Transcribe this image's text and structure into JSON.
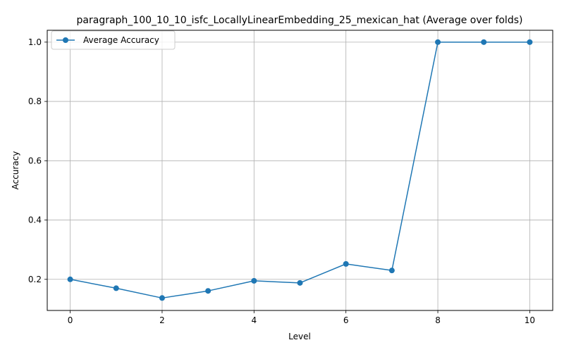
{
  "chart_data": {
    "type": "line",
    "title": "paragraph_100_10_10_isfc_LocallyLinearEmbedding_25_mexican_hat (Average over folds)",
    "xlabel": "Level",
    "ylabel": "Accuracy",
    "xlim": [
      -0.5,
      10.5
    ],
    "ylim": [
      0.095,
      1.04
    ],
    "xticks": [
      0,
      2,
      4,
      6,
      8,
      10
    ],
    "yticks": [
      0.2,
      0.4,
      0.6,
      0.8,
      1.0
    ],
    "xtick_labels": [
      "0",
      "2",
      "4",
      "6",
      "8",
      "10"
    ],
    "ytick_labels": [
      "0.2",
      "0.4",
      "0.6",
      "0.8",
      "1.0"
    ],
    "grid": true,
    "legend_position": "top-left",
    "series": [
      {
        "name": "Average Accuracy",
        "color": "#1f77b4",
        "marker": "circle",
        "x": [
          0,
          1,
          2,
          3,
          4,
          5,
          6,
          7,
          8,
          9,
          10
        ],
        "y": [
          0.2,
          0.17,
          0.137,
          0.161,
          0.195,
          0.188,
          0.252,
          0.23,
          1.0,
          1.0,
          1.0
        ]
      }
    ]
  }
}
